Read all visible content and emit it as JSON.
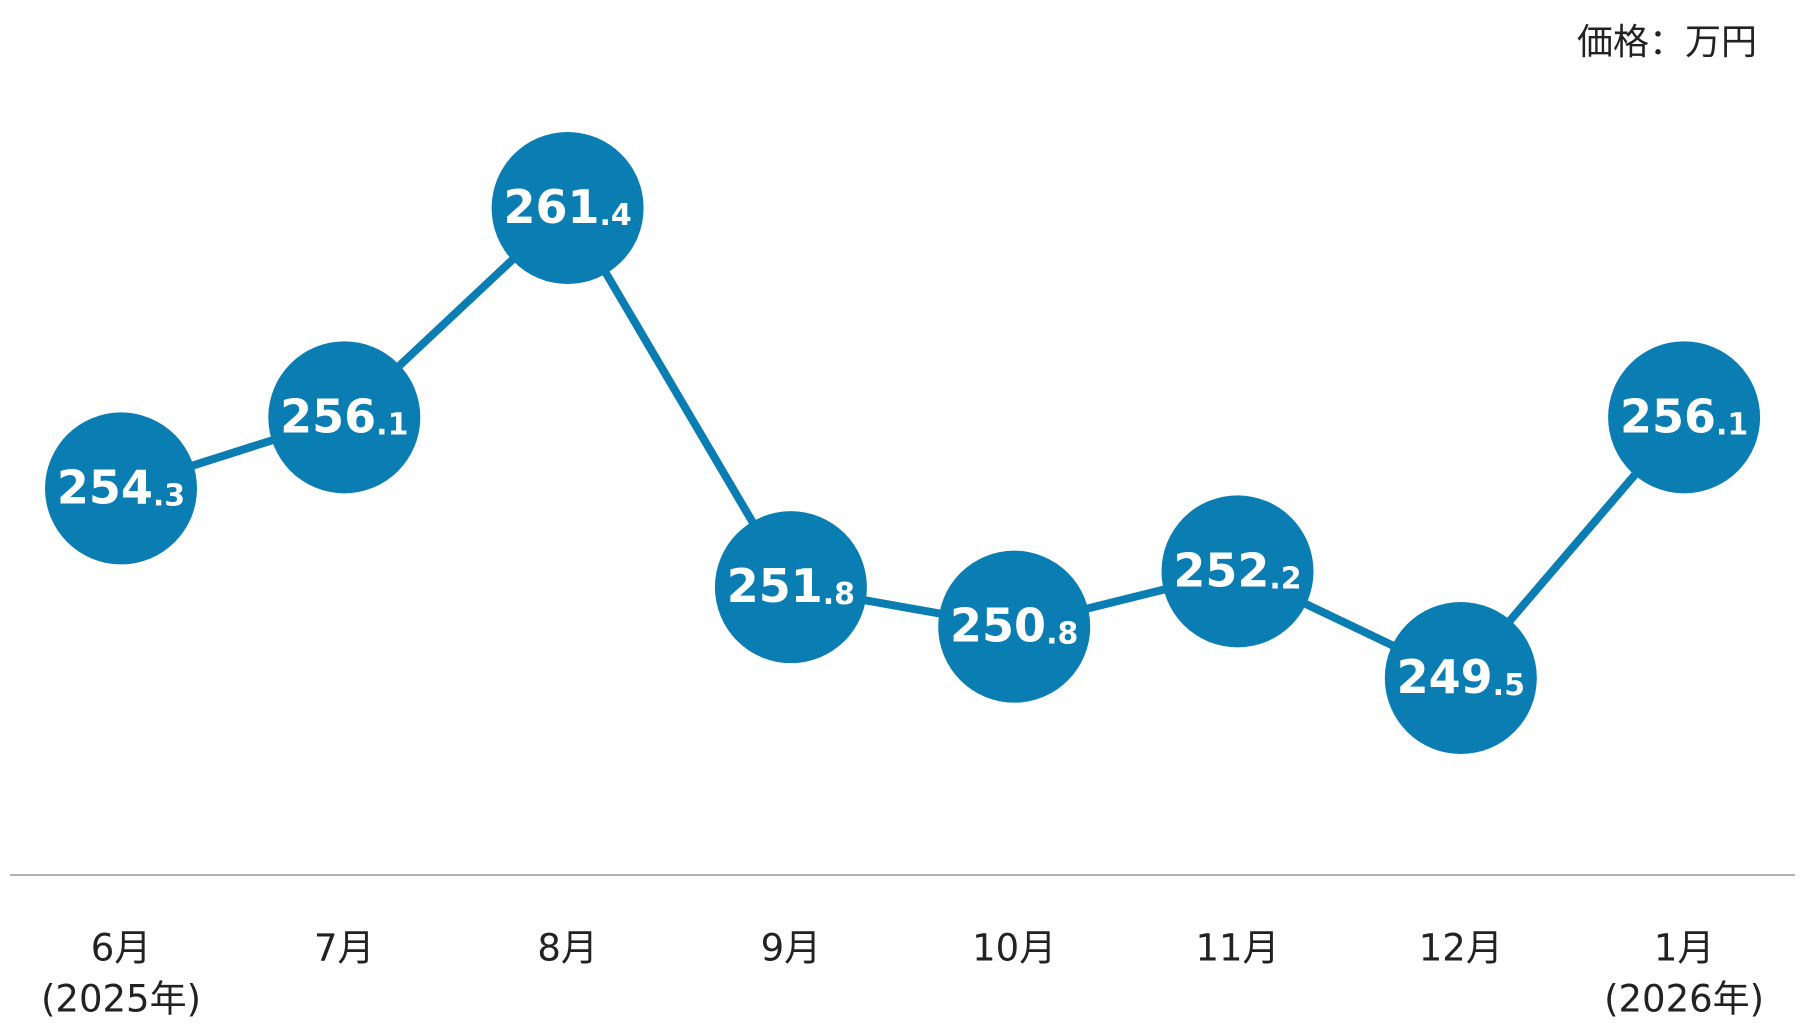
{
  "chart_data": {
    "type": "line",
    "unit_label": "価格：万円",
    "categories": [
      "6月",
      "7月",
      "8月",
      "9月",
      "10月",
      "11月",
      "12月",
      "1月"
    ],
    "category_years": [
      "(2025年)",
      null,
      null,
      null,
      null,
      null,
      null,
      "(2026年)"
    ],
    "series": [
      {
        "color": "#0a7db3",
        "values": [
          254.3,
          256.1,
          261.4,
          251.8,
          250.8,
          252.2,
          249.5,
          256.1
        ]
      }
    ]
  }
}
